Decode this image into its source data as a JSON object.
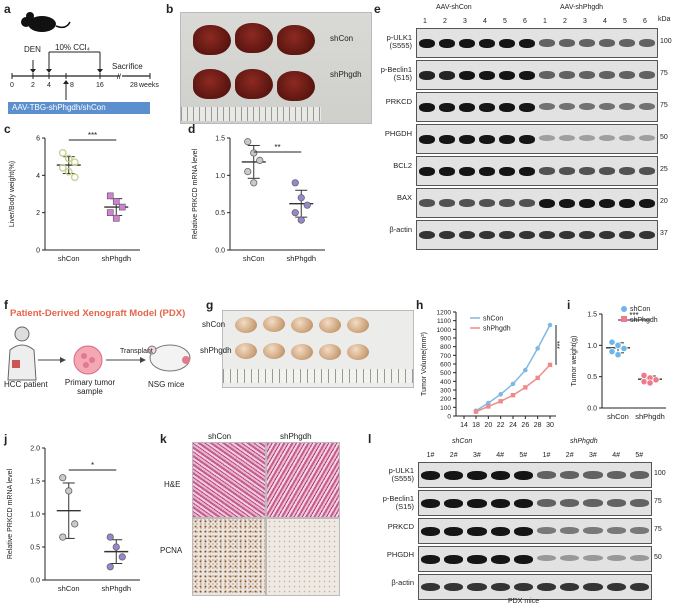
{
  "panel_labels": {
    "a": "a",
    "b": "b",
    "c": "c",
    "d": "d",
    "e": "e",
    "f": "f",
    "g": "g",
    "h": "h",
    "i": "i",
    "j": "j",
    "k": "k",
    "l": "l"
  },
  "panel_a": {
    "den": "DEN",
    "ccl4": "10% CCl₄",
    "sacrifice": "Sacrifice",
    "ticks": [
      "0",
      "2",
      "4",
      "8",
      "16",
      "28"
    ],
    "weeks": "weeks",
    "aav": "AAV-TBG-shPhgdh/shCon"
  },
  "panel_b": {
    "row1": "shCon",
    "row2": "shPhgdh"
  },
  "panel_c": {
    "ylabel": "Liver/Body weight(%)",
    "sig": "***",
    "cats": [
      "shCon",
      "shPhgdh"
    ]
  },
  "panel_d": {
    "ylabel": "Relative PRKCD mRNA level",
    "sig": "**",
    "cats": [
      "shCon",
      "shPhgdh"
    ]
  },
  "panel_e": {
    "group1": "AAV-shCon",
    "group2": "AAV-shPhgdh",
    "kda_header": "kDa",
    "lanes": [
      "1",
      "2",
      "3",
      "4",
      "5",
      "6",
      "1",
      "2",
      "3",
      "4",
      "5",
      "6"
    ],
    "rows": [
      {
        "label": "p-ULK1\n(S555)",
        "kda": "100"
      },
      {
        "label": "p-Beclin1\n(S15)",
        "kda": "75"
      },
      {
        "label": "PRKCD",
        "kda": "75"
      },
      {
        "label": "PHGDH",
        "kda": "50"
      },
      {
        "label": "BCL2",
        "kda": "25"
      },
      {
        "label": "BAX",
        "kda": "20"
      },
      {
        "label": "β-actin",
        "kda": "37"
      }
    ]
  },
  "panel_f": {
    "title": "Patient-Derived Xenograft Model (PDX)",
    "patient": "HCC patient",
    "sample": "Primary tumor\nsample",
    "transplant": "Transplant",
    "mice": "NSG mice"
  },
  "panel_g": {
    "row1": "shCon",
    "row2": "shPhgdh"
  },
  "panel_h": {
    "ylabel": "Tumor Volume(mm³)",
    "xlabel": "Days",
    "sig": "***",
    "legend": [
      "shCon",
      "shPhgdh"
    ]
  },
  "panel_i": {
    "ylabel": "Tumor weight(g)",
    "sig": "***",
    "legend": [
      "shCon",
      "shPhgdh"
    ]
  },
  "panel_j": {
    "ylabel": "Relative PRKCD mRNA level",
    "sig": "*",
    "cats": [
      "shCon",
      "shPhgdh"
    ]
  },
  "panel_k": {
    "col1": "shCon",
    "col2": "shPhgdh",
    "row1": "H&E",
    "row2": "PCNA"
  },
  "panel_l": {
    "group1": "shCon",
    "group2": "shPhgdh",
    "footer": "PDX mice",
    "lanes": [
      "1#",
      "2#",
      "3#",
      "4#",
      "5#",
      "1#",
      "2#",
      "3#",
      "4#",
      "5#"
    ],
    "rows": [
      {
        "label": "p-ULK1\n(S555)",
        "kda": "100"
      },
      {
        "label": "p-Beclin1\n(S15)",
        "kda": "75"
      },
      {
        "label": "PRKCD",
        "kda": "75"
      },
      {
        "label": "PHGDH",
        "kda": "50"
      },
      {
        "label": "β-actin",
        "kda": ""
      }
    ]
  },
  "chart_data": [
    {
      "panel": "c",
      "type": "scatter",
      "categories": [
        "shCon",
        "shPhgdh"
      ],
      "ylim": [
        0,
        6
      ],
      "yticks": [
        "0",
        "2",
        "4",
        "6"
      ],
      "series": [
        {
          "name": "shCon",
          "values": [
            5.2,
            4.9,
            4.7,
            4.4,
            4.2,
            3.9
          ],
          "mean": 4.55,
          "sd": 0.45,
          "color": "#c8d18f"
        },
        {
          "name": "shPhgdh",
          "values": [
            2.9,
            2.6,
            2.3,
            2.0,
            1.7
          ],
          "mean": 2.3,
          "sd": 0.45,
          "color": "#d27fd6"
        }
      ]
    },
    {
      "panel": "d",
      "type": "scatter",
      "categories": [
        "shCon",
        "shPhgdh"
      ],
      "ylim": [
        0,
        1.5
      ],
      "yticks": [
        "0.0",
        "0.5",
        "1.0",
        "1.5"
      ],
      "series": [
        {
          "name": "shCon",
          "values": [
            1.45,
            1.3,
            1.2,
            1.05,
            0.9
          ],
          "mean": 1.18,
          "sd": 0.22,
          "color": "#c9c9c9"
        },
        {
          "name": "shPhgdh",
          "values": [
            0.9,
            0.7,
            0.6,
            0.5,
            0.4
          ],
          "mean": 0.62,
          "sd": 0.18,
          "color": "#9a86cf"
        }
      ]
    },
    {
      "panel": "h",
      "type": "line",
      "x": [
        14,
        18,
        20,
        22,
        24,
        26,
        28,
        30
      ],
      "xticks": [
        "14",
        "18",
        "20",
        "22",
        "24",
        "26",
        "28",
        "30"
      ],
      "ylim": [
        0,
        1200
      ],
      "yticks": [
        "0",
        "100",
        "200",
        "300",
        "400",
        "500",
        "600",
        "700",
        "800",
        "900",
        "1000",
        "1100",
        "1200"
      ],
      "series": [
        {
          "name": "shCon",
          "values": [
            null,
            60,
            150,
            250,
            370,
            530,
            780,
            1050
          ],
          "color": "#7eb9e6"
        },
        {
          "name": "shPhgdh",
          "values": [
            null,
            50,
            110,
            170,
            240,
            330,
            440,
            590
          ],
          "color": "#f08a8a"
        }
      ]
    },
    {
      "panel": "i",
      "type": "scatter",
      "categories": [
        "shCon",
        "shPhgdh"
      ],
      "ylim": [
        0,
        1.5
      ],
      "yticks": [
        "0.0",
        "0.5",
        "1.0",
        "1.5"
      ],
      "series": [
        {
          "name": "shCon",
          "values": [
            1.05,
            1.0,
            0.95,
            0.9,
            0.85
          ],
          "mean": 0.96,
          "sd": 0.08,
          "color": "#6bb7ea"
        },
        {
          "name": "shPhgdh",
          "values": [
            0.52,
            0.48,
            0.45,
            0.42,
            0.4
          ],
          "mean": 0.46,
          "sd": 0.05,
          "color": "#f07a8a"
        }
      ]
    },
    {
      "panel": "j",
      "type": "scatter",
      "categories": [
        "shCon",
        "shPhgdh"
      ],
      "ylim": [
        0,
        2.0
      ],
      "yticks": [
        "0.0",
        "0.5",
        "1.0",
        "1.5",
        "2.0"
      ],
      "series": [
        {
          "name": "shCon",
          "values": [
            1.55,
            1.35,
            0.85,
            0.65
          ],
          "mean": 1.05,
          "sd": 0.42,
          "color": "#c9c9c9"
        },
        {
          "name": "shPhgdh",
          "values": [
            0.65,
            0.5,
            0.35,
            0.2
          ],
          "mean": 0.43,
          "sd": 0.18,
          "color": "#9a86cf"
        }
      ]
    }
  ]
}
